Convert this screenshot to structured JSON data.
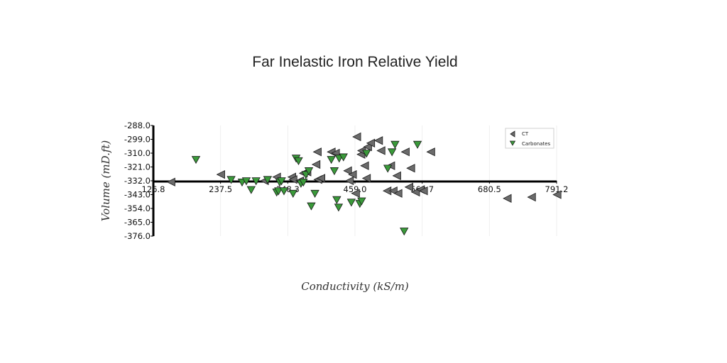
{
  "chart_data": {
    "type": "scatter",
    "title": "Far Inelastic Iron Relative Yield",
    "xlabel": "Conductivity (kS/m)",
    "ylabel": "Volume (mD.ft)",
    "xlim": [
      126.8,
      791.2
    ],
    "ylim": [
      -376.0,
      -288.0
    ],
    "x_ticks": [
      "126.8",
      "237.5",
      "348.3",
      "459.0",
      "569.7",
      "680.5",
      "791.2"
    ],
    "y_ticks": [
      "-288.0",
      "-299.0",
      "-310.0",
      "-321.0",
      "-332.0",
      "-343.0",
      "-354.0",
      "-365.0",
      "-376.0"
    ],
    "grid": "vertical",
    "legend_position": "top-right",
    "series": [
      {
        "name": "CT",
        "color": "#6b6b6b",
        "marker": "triangle-left",
        "points": [
          [
            156,
            -333
          ],
          [
            238,
            -327
          ],
          [
            310,
            -332
          ],
          [
            330,
            -329
          ],
          [
            355,
            -329
          ],
          [
            357,
            -331
          ],
          [
            368,
            -332
          ],
          [
            374,
            -326
          ],
          [
            380,
            -325
          ],
          [
            395,
            -319
          ],
          [
            398,
            -331
          ],
          [
            397,
            -309
          ],
          [
            403,
            -330
          ],
          [
            420,
            -309
          ],
          [
            427,
            -310
          ],
          [
            447,
            -324
          ],
          [
            450,
            -332
          ],
          [
            455,
            -327
          ],
          [
            460,
            -342
          ],
          [
            462,
            -297
          ],
          [
            469,
            -311
          ],
          [
            470,
            -308
          ],
          [
            475,
            -320
          ],
          [
            478,
            -330
          ],
          [
            480,
            -305
          ],
          [
            485,
            -302
          ],
          [
            498,
            -300
          ],
          [
            502,
            -308
          ],
          [
            512,
            -340
          ],
          [
            518,
            -320
          ],
          [
            522,
            -340
          ],
          [
            528,
            -328
          ],
          [
            530,
            -342
          ],
          [
            542,
            -309
          ],
          [
            548,
            -337
          ],
          [
            551,
            -322
          ],
          [
            559,
            -341
          ],
          [
            567,
            -339
          ],
          [
            572,
            -340
          ],
          [
            584,
            -309
          ],
          [
            710,
            -346
          ],
          [
            750,
            -345
          ],
          [
            792,
            -343
          ]
        ]
      },
      {
        "name": "Carbonates",
        "color": "#3a9a3a",
        "marker": "triangle-down",
        "points": [
          [
            197,
            -315
          ],
          [
            255,
            -331
          ],
          [
            273,
            -333
          ],
          [
            280,
            -332
          ],
          [
            288,
            -339
          ],
          [
            296,
            -332
          ],
          [
            315,
            -331
          ],
          [
            330,
            -341
          ],
          [
            333,
            -340
          ],
          [
            335,
            -333
          ],
          [
            338,
            -332
          ],
          [
            342,
            -340
          ],
          [
            357,
            -342
          ],
          [
            362,
            -314
          ],
          [
            366,
            -316
          ],
          [
            370,
            -334
          ],
          [
            374,
            -333
          ],
          [
            378,
            -327
          ],
          [
            383,
            -324
          ],
          [
            387,
            -352
          ],
          [
            393,
            -342
          ],
          [
            420,
            -315
          ],
          [
            425,
            -324
          ],
          [
            429,
            -347
          ],
          [
            432,
            -353
          ],
          [
            433,
            -314
          ],
          [
            440,
            -313
          ],
          [
            453,
            -349
          ],
          [
            467,
            -350
          ],
          [
            470,
            -348
          ],
          [
            478,
            -310
          ],
          [
            513,
            -322
          ],
          [
            520,
            -309
          ],
          [
            525,
            -303
          ],
          [
            540,
            -372
          ],
          [
            562,
            -303
          ]
        ]
      }
    ]
  }
}
